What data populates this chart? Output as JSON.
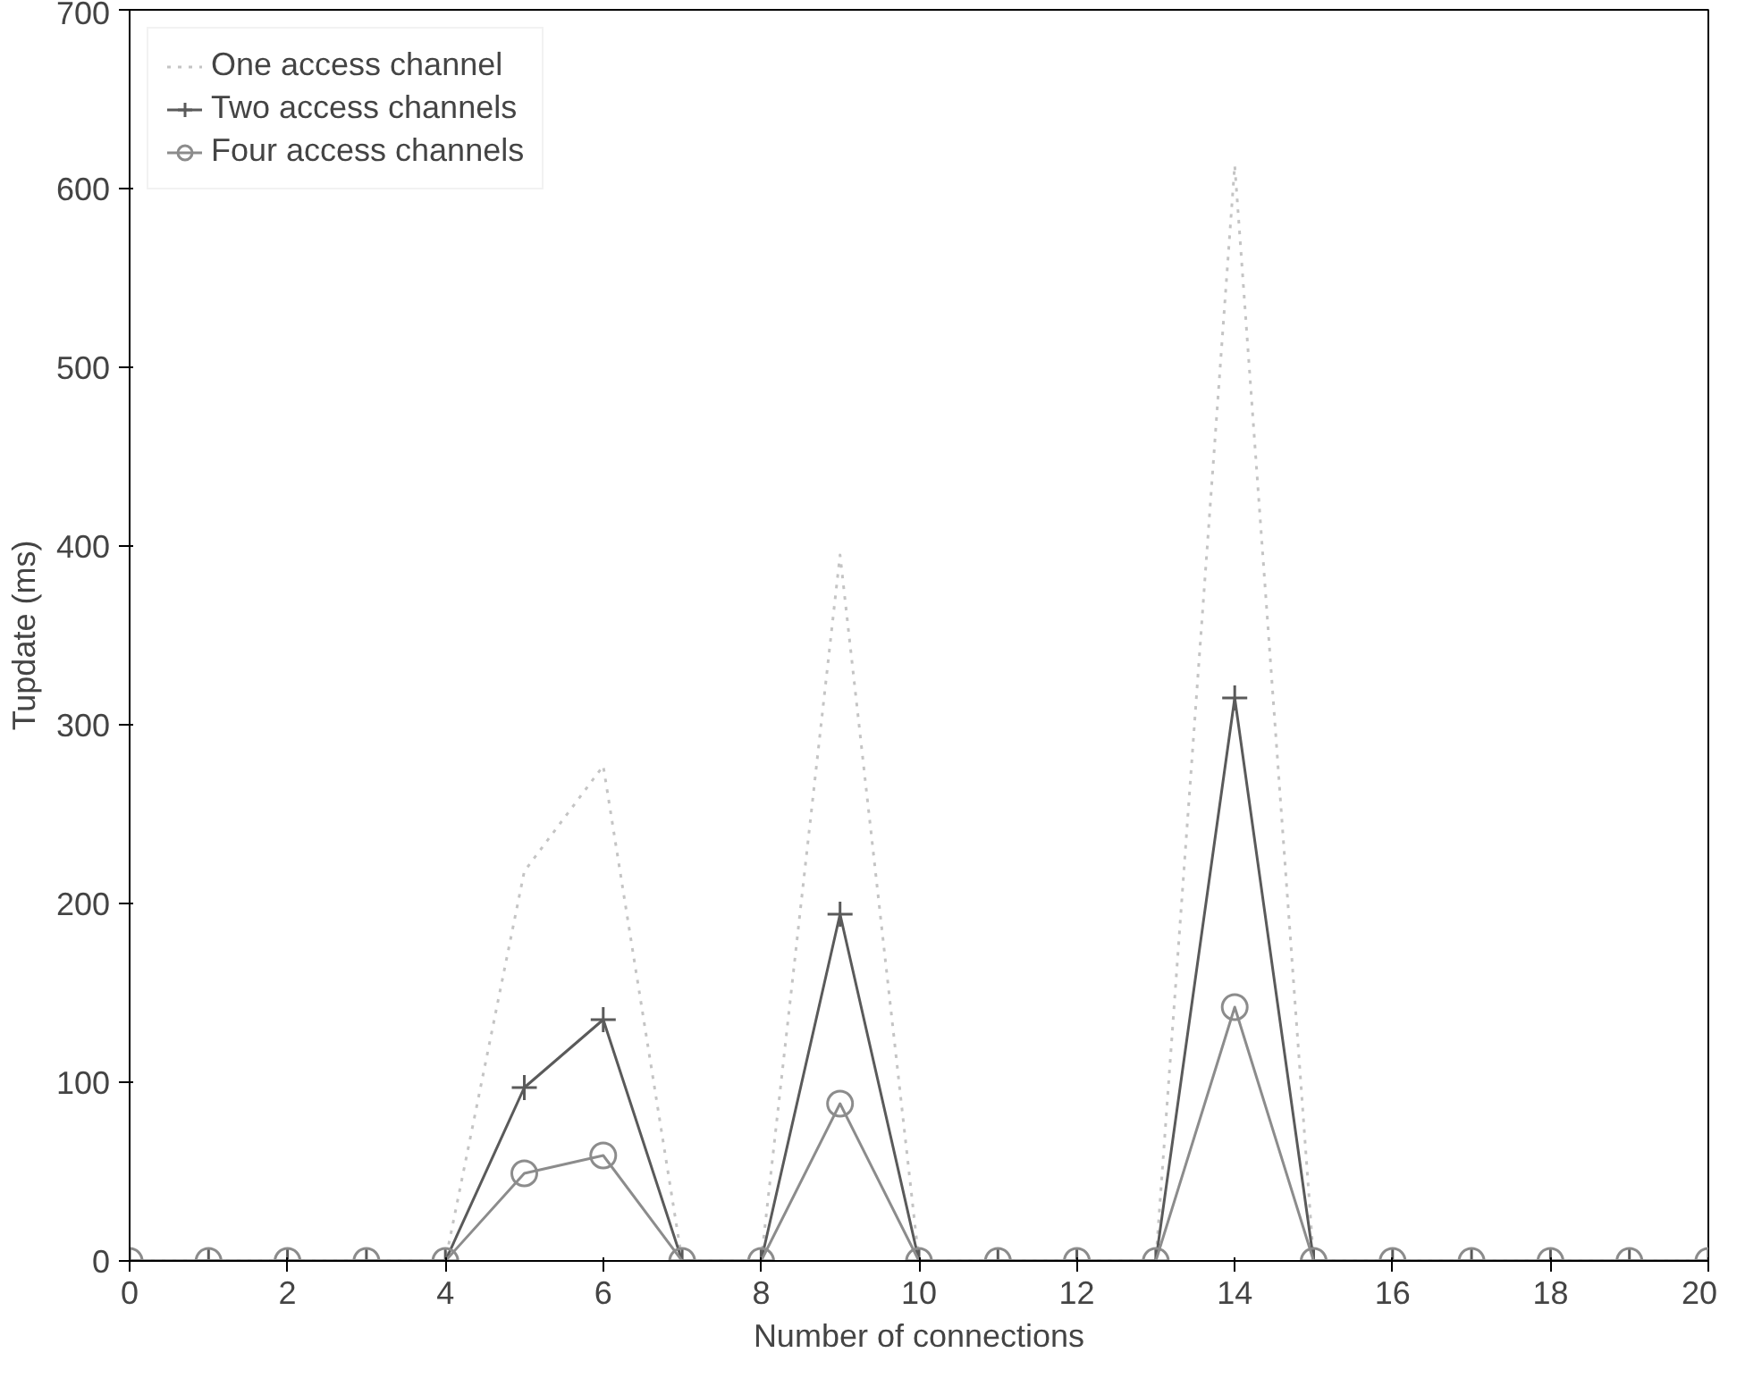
{
  "chart_data": {
    "type": "line",
    "xlabel": "Number of connections",
    "ylabel": "Tupdate (ms)",
    "x": [
      0,
      1,
      2,
      3,
      4,
      5,
      6,
      7,
      8,
      9,
      10,
      11,
      12,
      13,
      14,
      15,
      16,
      17,
      18,
      19,
      20
    ],
    "xlim": [
      0,
      20
    ],
    "xticks": [
      0,
      2,
      4,
      6,
      8,
      10,
      12,
      14,
      16,
      18,
      20
    ],
    "ylim": [
      0,
      700
    ],
    "yticks": [
      0,
      100,
      200,
      300,
      400,
      500,
      600,
      700
    ],
    "grid": false,
    "legend": "top left",
    "series": [
      {
        "name": "One access channel",
        "color": "#c4c4c4",
        "marker": "none",
        "line_style": "dotted",
        "values": [
          0,
          0,
          0,
          0,
          0,
          218,
          277,
          0,
          0,
          395,
          0,
          0,
          0,
          0,
          613,
          0,
          0,
          0,
          0,
          0,
          0
        ]
      },
      {
        "name": "Two access channels",
        "color": "#5a5a5a",
        "marker": "cross",
        "line_style": "solid",
        "values": [
          0,
          0,
          0,
          0,
          0,
          97,
          135,
          0,
          0,
          194,
          0,
          0,
          0,
          0,
          315,
          0,
          0,
          0,
          0,
          0,
          0
        ]
      },
      {
        "name": "Four access channels",
        "color": "#8c8c8c",
        "marker": "circle",
        "line_style": "solid",
        "values": [
          0,
          0,
          0,
          0,
          0,
          49,
          59,
          0,
          0,
          88,
          0,
          0,
          0,
          0,
          142,
          0,
          0,
          0,
          0,
          0,
          0
        ]
      }
    ]
  }
}
